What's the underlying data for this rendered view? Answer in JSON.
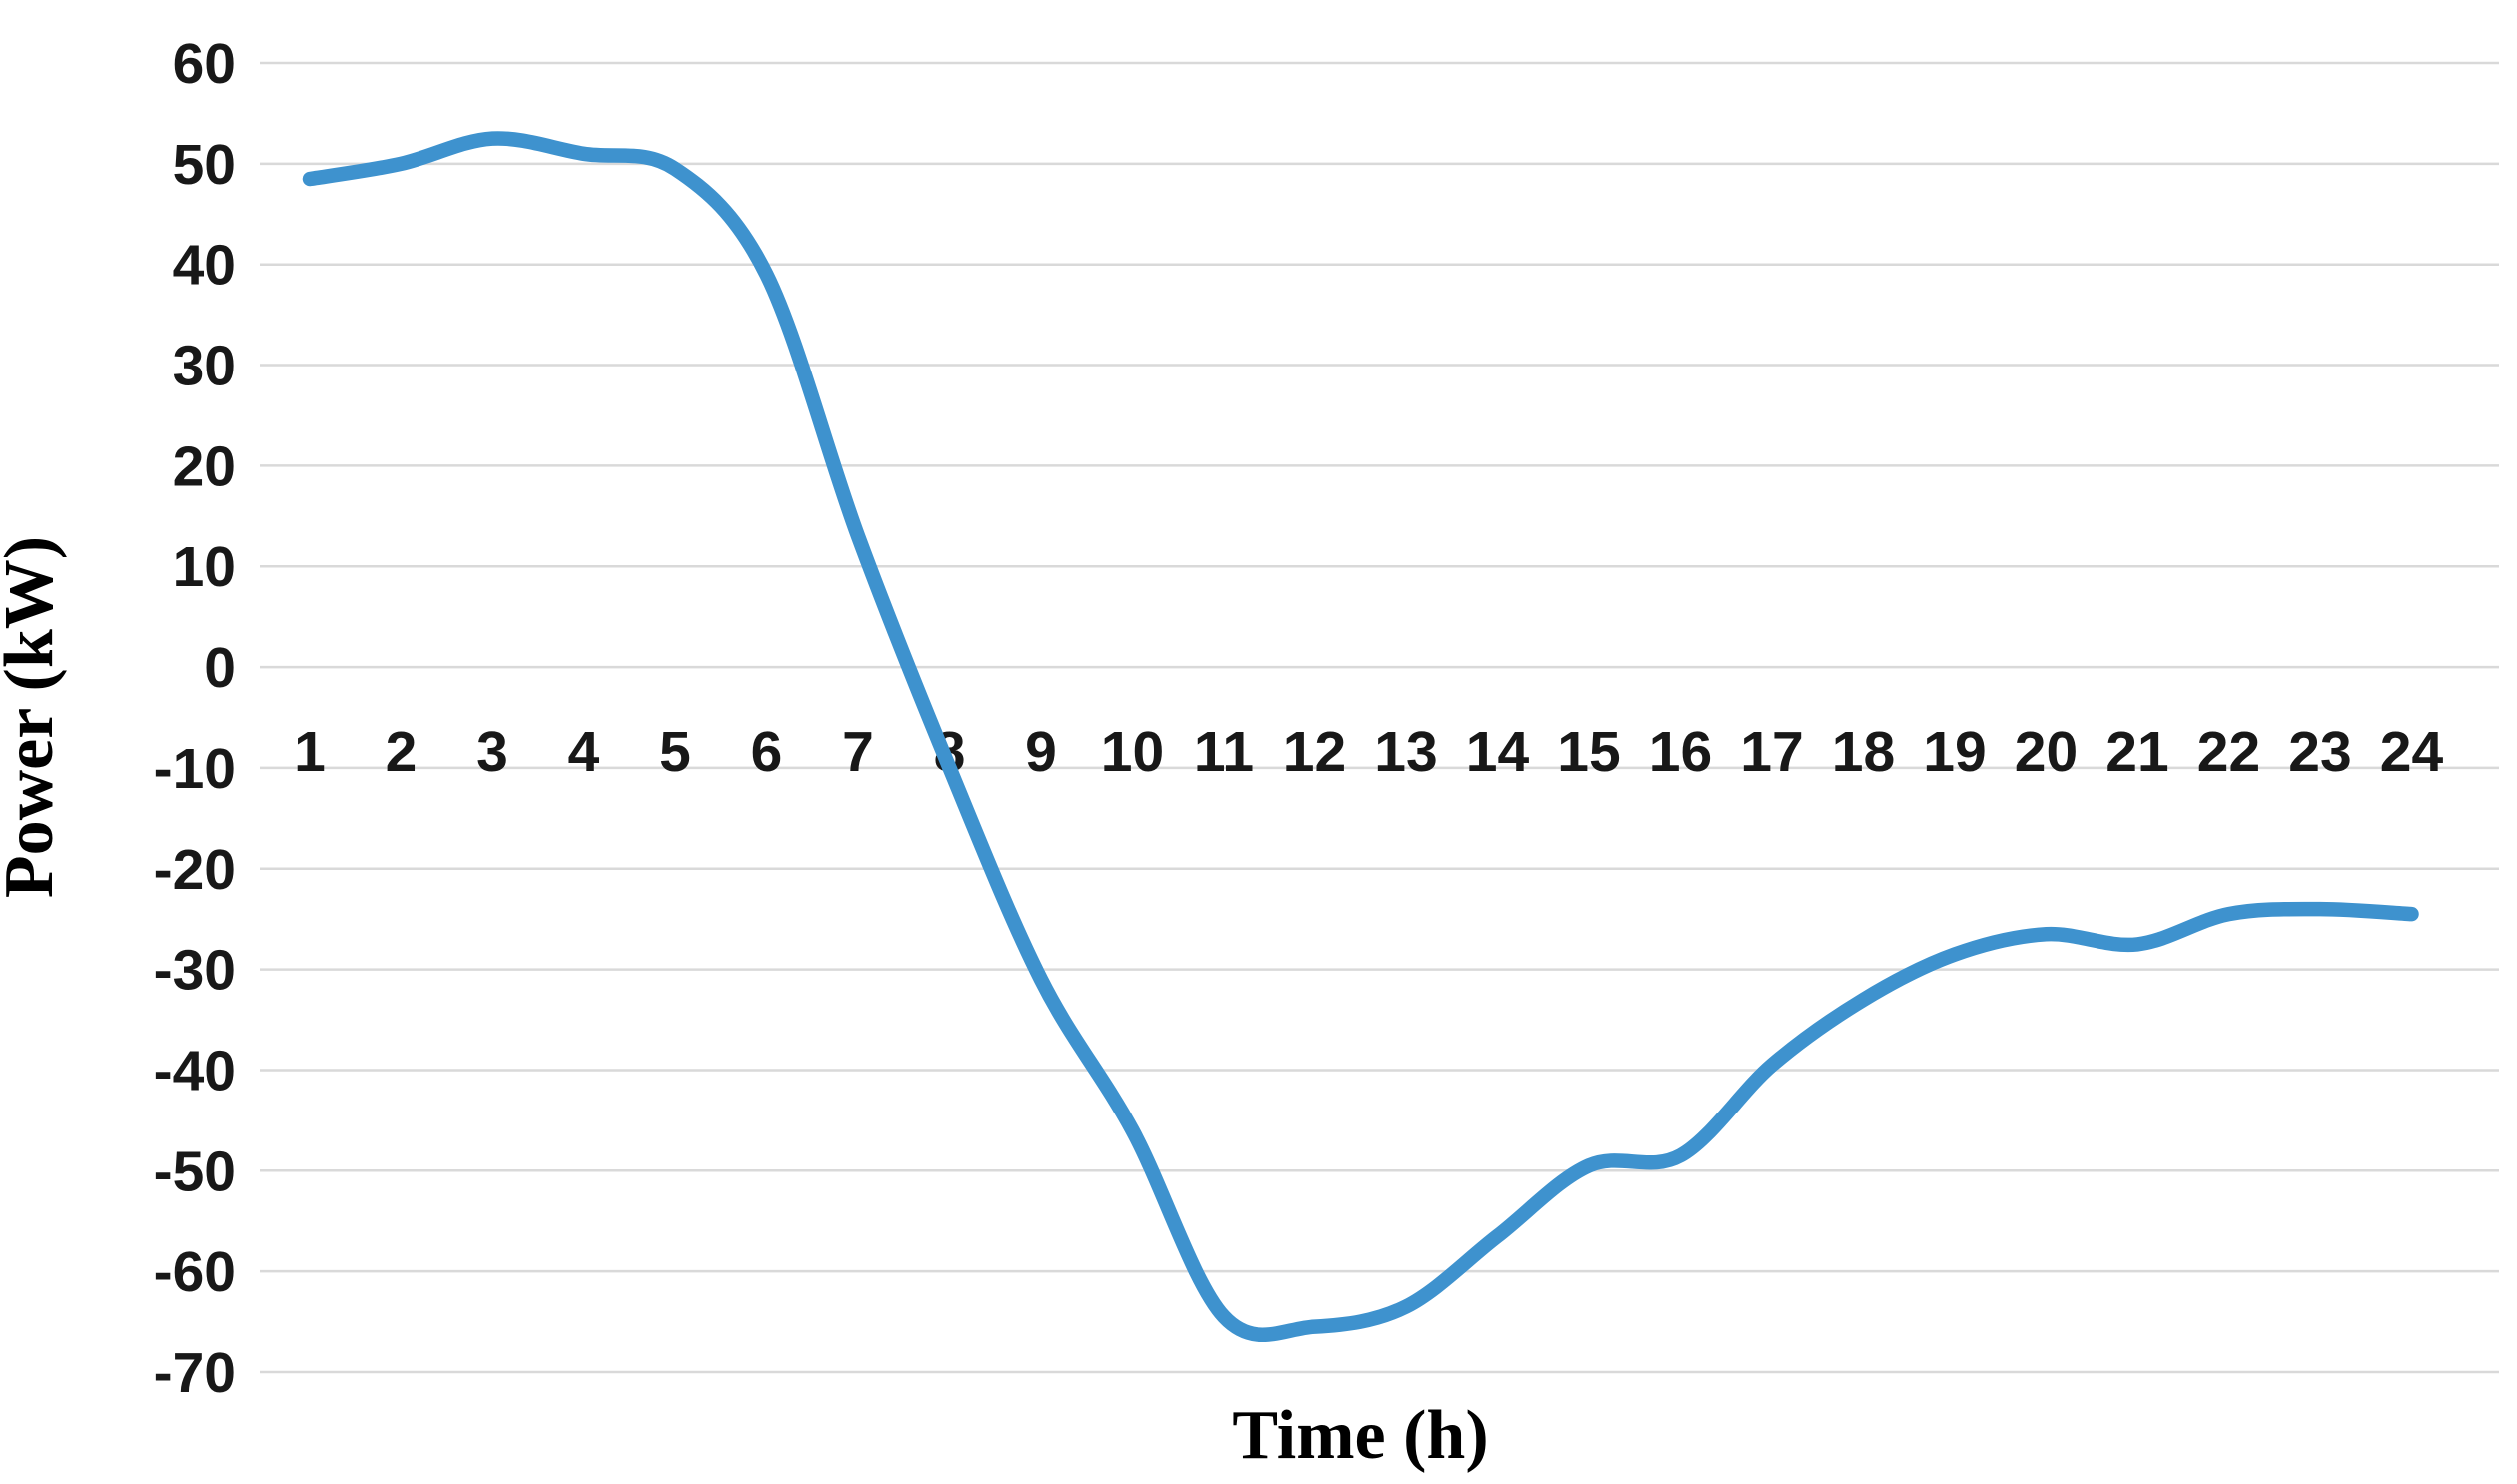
{
  "chart_data": {
    "type": "line",
    "title": "",
    "xlabel": "Time (h)",
    "ylabel": "Power (kW)",
    "categories": [
      1,
      2,
      3,
      4,
      5,
      6,
      7,
      8,
      9,
      10,
      11,
      12,
      13,
      14,
      15,
      16,
      17,
      18,
      19,
      20,
      21,
      22,
      23,
      24
    ],
    "series": [
      {
        "name": "Power",
        "values": [
          48.5,
          50,
          52.5,
          51,
          49.5,
          39,
          13,
          -10,
          -31,
          -46,
          -64.5,
          -65.5,
          -63.5,
          -56.5,
          -49.5,
          -48.5,
          -39.5,
          -33,
          -28.5,
          -26.5,
          -27.5,
          -24.5,
          -24,
          -24.5
        ]
      }
    ],
    "ylim": [
      -70,
      60
    ],
    "ytick_step": 10,
    "y_ticks": [
      60,
      50,
      40,
      30,
      20,
      10,
      0,
      -10,
      -20,
      -30,
      -40,
      -50,
      -60,
      -70
    ],
    "x_ticks": [
      1,
      2,
      3,
      4,
      5,
      6,
      7,
      8,
      9,
      10,
      11,
      12,
      13,
      14,
      15,
      16,
      17,
      18,
      19,
      20,
      21,
      22,
      23,
      24
    ],
    "grid": "horizontal-only",
    "legend": "none",
    "line_color": "#3E92CE",
    "gridline_color": "#D9D9D9",
    "background_color": "#FFFFFF",
    "text_color": "#181818",
    "line_smoothing": "smooth",
    "marker": "none"
  }
}
